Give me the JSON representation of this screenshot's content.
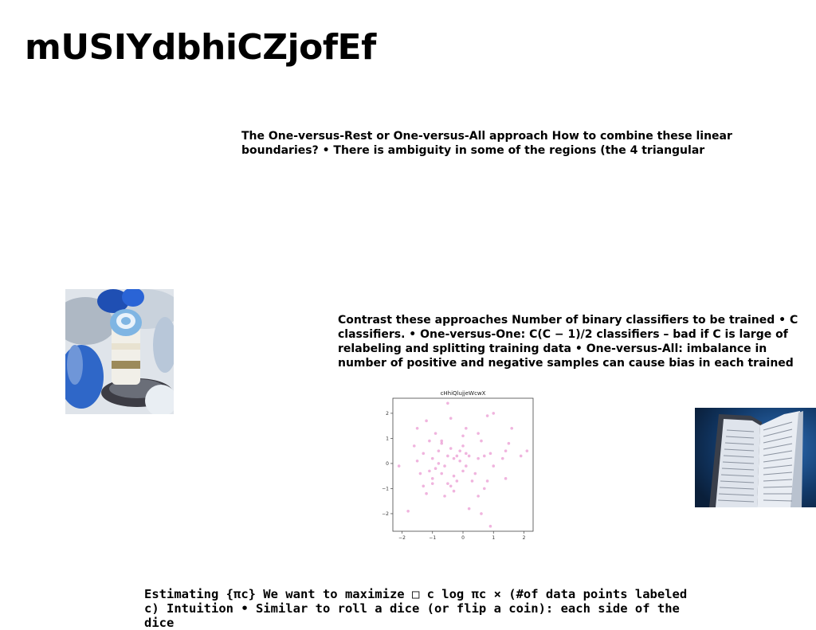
{
  "title": "mUSIYdbhiCZjofEf",
  "paragraphs": {
    "p1": "The One-versus-Rest or One-versus-All approach How to combine these linear boundaries? • There is ambiguity in some of the regions (the 4 triangular",
    "p2": "Contrast these approaches Number of binary classifiers to be trained • C classifiers. • One-versus-One: C(C − 1)/2 classifiers – bad if C is large of relabeling and splitting training data • One-versus-All: imbalance in number of positive and negative samples can cause bias in each trained",
    "p3": "Estimating {πc} We want to maximize □ c log πc × (#of data points labeled c) Intuition • Similar to roll a dice (or flip a coin): each side of the dice"
  },
  "colors": {
    "point": "#e377c2"
  },
  "chart_data": {
    "type": "scatter",
    "title": "cHhiQlujjeWcwX",
    "xlabel": "",
    "ylabel": "",
    "xlim": [
      -2.3,
      2.3
    ],
    "ylim": [
      -2.7,
      2.6
    ],
    "xticks": [
      -2,
      -1,
      0,
      1,
      2
    ],
    "yticks": [
      -2,
      -1,
      0,
      1,
      2
    ],
    "grid": false,
    "points": [
      [
        -2.1,
        -0.1
      ],
      [
        -1.8,
        -1.9
      ],
      [
        -1.6,
        0.7
      ],
      [
        -1.5,
        1.4
      ],
      [
        -1.5,
        0.1
      ],
      [
        -1.4,
        -0.4
      ],
      [
        -1.3,
        -0.9
      ],
      [
        -1.3,
        0.4
      ],
      [
        -1.2,
        -1.2
      ],
      [
        -1.2,
        1.7
      ],
      [
        -1.1,
        -0.3
      ],
      [
        -1.1,
        0.9
      ],
      [
        -1.0,
        0.2
      ],
      [
        -1.0,
        -0.6
      ],
      [
        -1.0,
        -0.8
      ],
      [
        -0.9,
        1.2
      ],
      [
        -0.9,
        -0.2
      ],
      [
        -0.8,
        0.5
      ],
      [
        -0.8,
        0.0
      ],
      [
        -0.7,
        -0.4
      ],
      [
        -0.7,
        0.9
      ],
      [
        -0.7,
        0.8
      ],
      [
        -0.6,
        -0.1
      ],
      [
        -0.6,
        -1.3
      ],
      [
        -0.5,
        0.3
      ],
      [
        -0.5,
        -0.8
      ],
      [
        -0.5,
        2.4
      ],
      [
        -0.4,
        -0.9
      ],
      [
        -0.4,
        1.8
      ],
      [
        -0.4,
        0.6
      ],
      [
        -0.3,
        -0.5
      ],
      [
        -0.3,
        0.2
      ],
      [
        -0.3,
        -1.1
      ],
      [
        -0.2,
        0.3
      ],
      [
        -0.2,
        -0.7
      ],
      [
        -0.1,
        0.1
      ],
      [
        -0.1,
        0.5
      ],
      [
        0.0,
        1.1
      ],
      [
        0.0,
        -0.3
      ],
      [
        0.0,
        0.7
      ],
      [
        0.1,
        1.4
      ],
      [
        0.1,
        -0.1
      ],
      [
        0.1,
        0.4
      ],
      [
        0.2,
        -1.8
      ],
      [
        0.2,
        0.3
      ],
      [
        0.3,
        -0.7
      ],
      [
        0.4,
        -0.4
      ],
      [
        0.5,
        0.2
      ],
      [
        0.5,
        1.2
      ],
      [
        0.5,
        -1.3
      ],
      [
        0.6,
        -2.0
      ],
      [
        0.6,
        0.9
      ],
      [
        0.7,
        0.3
      ],
      [
        0.7,
        -1.0
      ],
      [
        0.8,
        1.9
      ],
      [
        0.8,
        -0.7
      ],
      [
        0.9,
        0.4
      ],
      [
        0.9,
        -2.5
      ],
      [
        1.0,
        -0.1
      ],
      [
        1.0,
        2.0
      ],
      [
        1.3,
        0.2
      ],
      [
        1.4,
        0.5
      ],
      [
        1.4,
        -0.6
      ],
      [
        1.5,
        0.8
      ],
      [
        1.6,
        1.4
      ],
      [
        1.9,
        0.3
      ],
      [
        2.1,
        0.5
      ]
    ]
  }
}
